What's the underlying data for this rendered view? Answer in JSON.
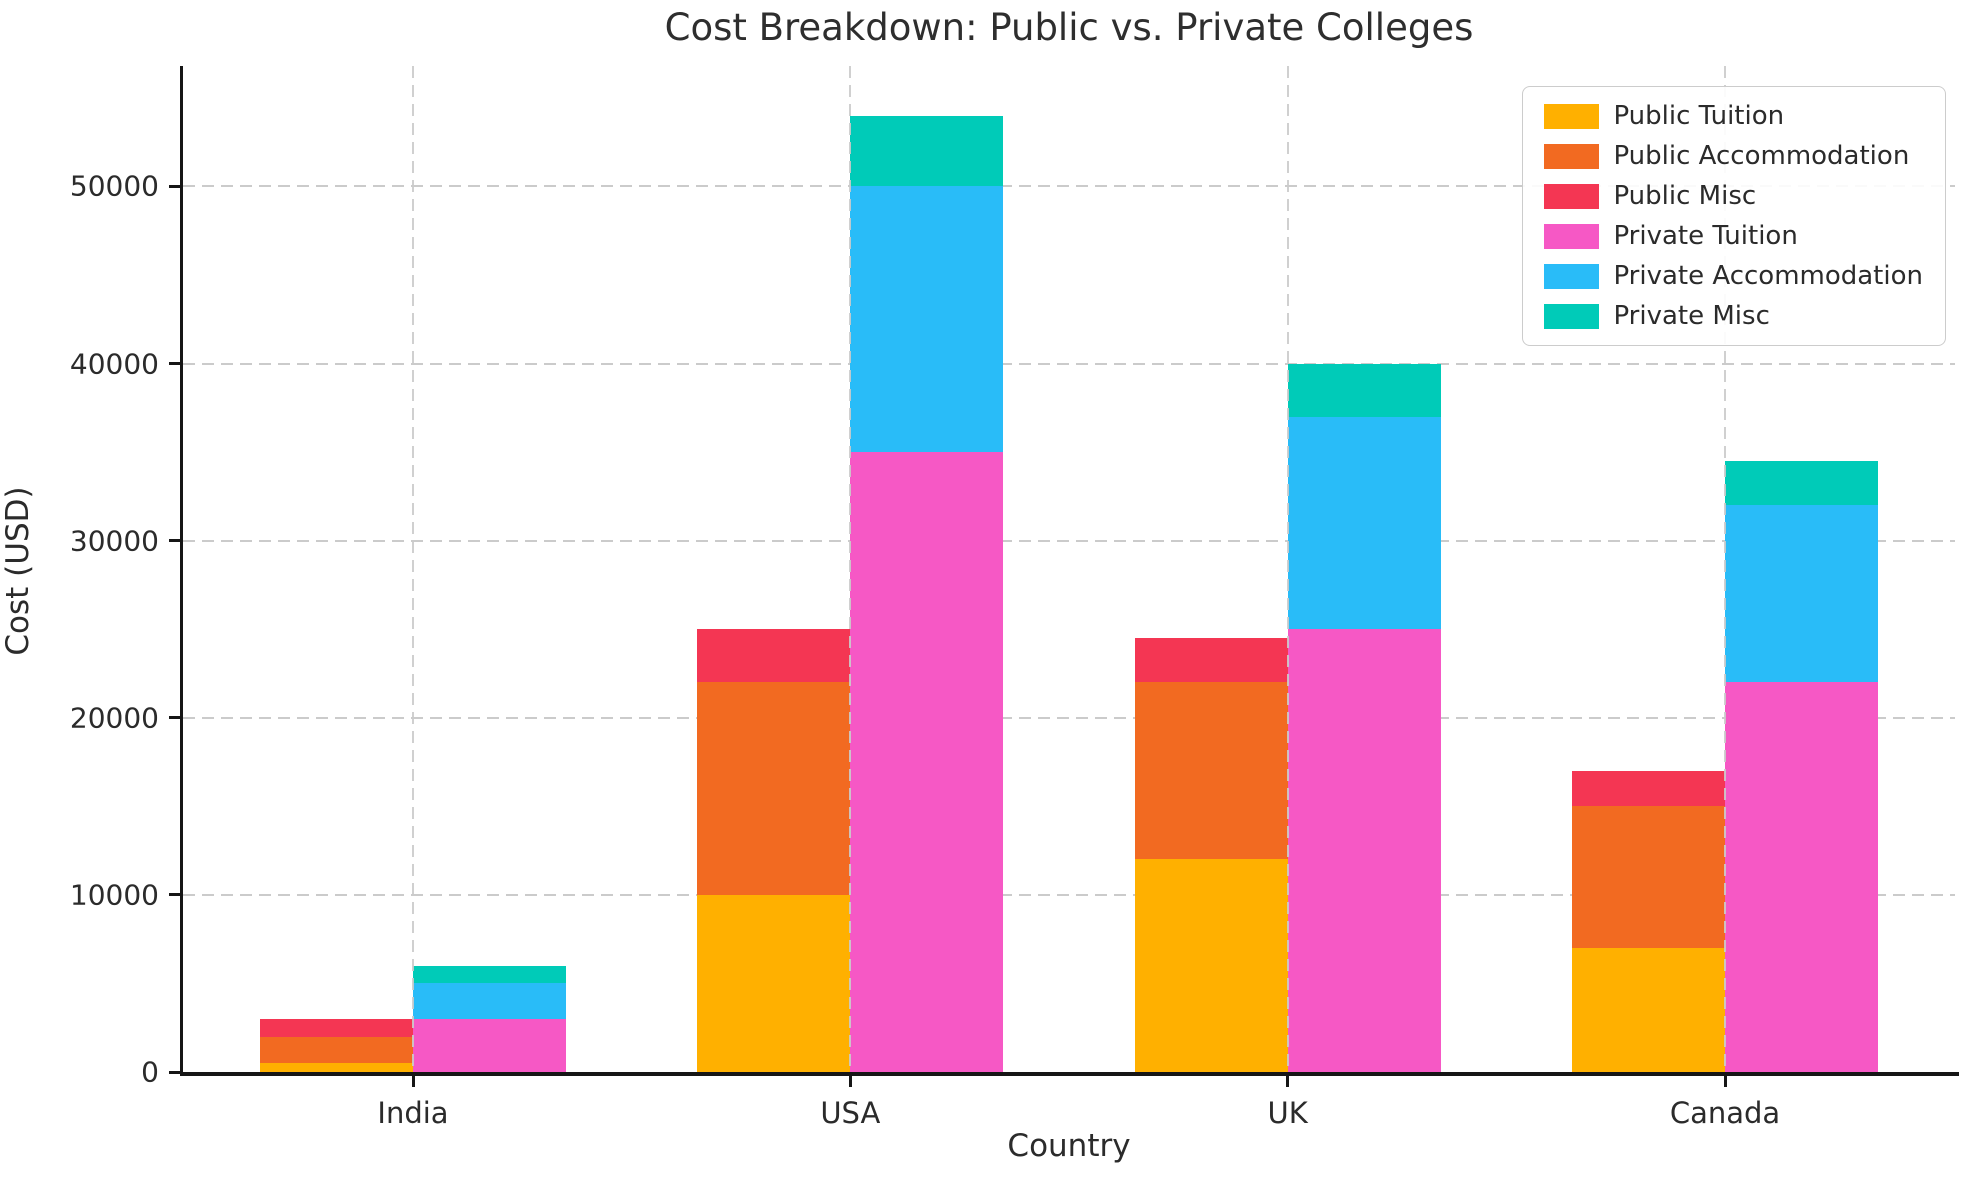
{
  "chart_data": {
    "type": "bar",
    "stacked": true,
    "title": "Cost Breakdown: Public vs. Private Colleges",
    "xlabel": "Country",
    "ylabel": "Cost (USD)",
    "categories": [
      "India",
      "USA",
      "UK",
      "Canada"
    ],
    "series": [
      {
        "name": "Public Tuition",
        "group": "Public",
        "color": "#FFB000",
        "values": [
          500,
          10000,
          12000,
          7000
        ]
      },
      {
        "name": "Public Accommodation",
        "group": "Public",
        "color": "#F26A21",
        "values": [
          1500,
          12000,
          10000,
          8000
        ]
      },
      {
        "name": "Public Misc",
        "group": "Public",
        "color": "#F43653",
        "values": [
          1000,
          3000,
          2500,
          2000
        ]
      },
      {
        "name": "Private Tuition",
        "group": "Private",
        "color": "#F658C5",
        "values": [
          3000,
          35000,
          25000,
          22000
        ]
      },
      {
        "name": "Private Accommodation",
        "group": "Private",
        "color": "#29BCF8",
        "values": [
          2000,
          15000,
          12000,
          10000
        ]
      },
      {
        "name": "Private Misc",
        "group": "Private",
        "color": "#00CBB8",
        "values": [
          1000,
          4000,
          3000,
          2500
        ]
      }
    ],
    "totals": {
      "Public": {
        "India": 3000,
        "USA": 25000,
        "UK": 24500,
        "Canada": 17000
      },
      "Private": {
        "India": 6000,
        "USA": 54000,
        "UK": 40000,
        "Canada": 34500
      }
    },
    "yticks": [
      0,
      10000,
      20000,
      30000,
      40000,
      50000
    ],
    "ylim": [
      0,
      56800
    ],
    "grid": "dashed",
    "legend_position": "upper right"
  }
}
